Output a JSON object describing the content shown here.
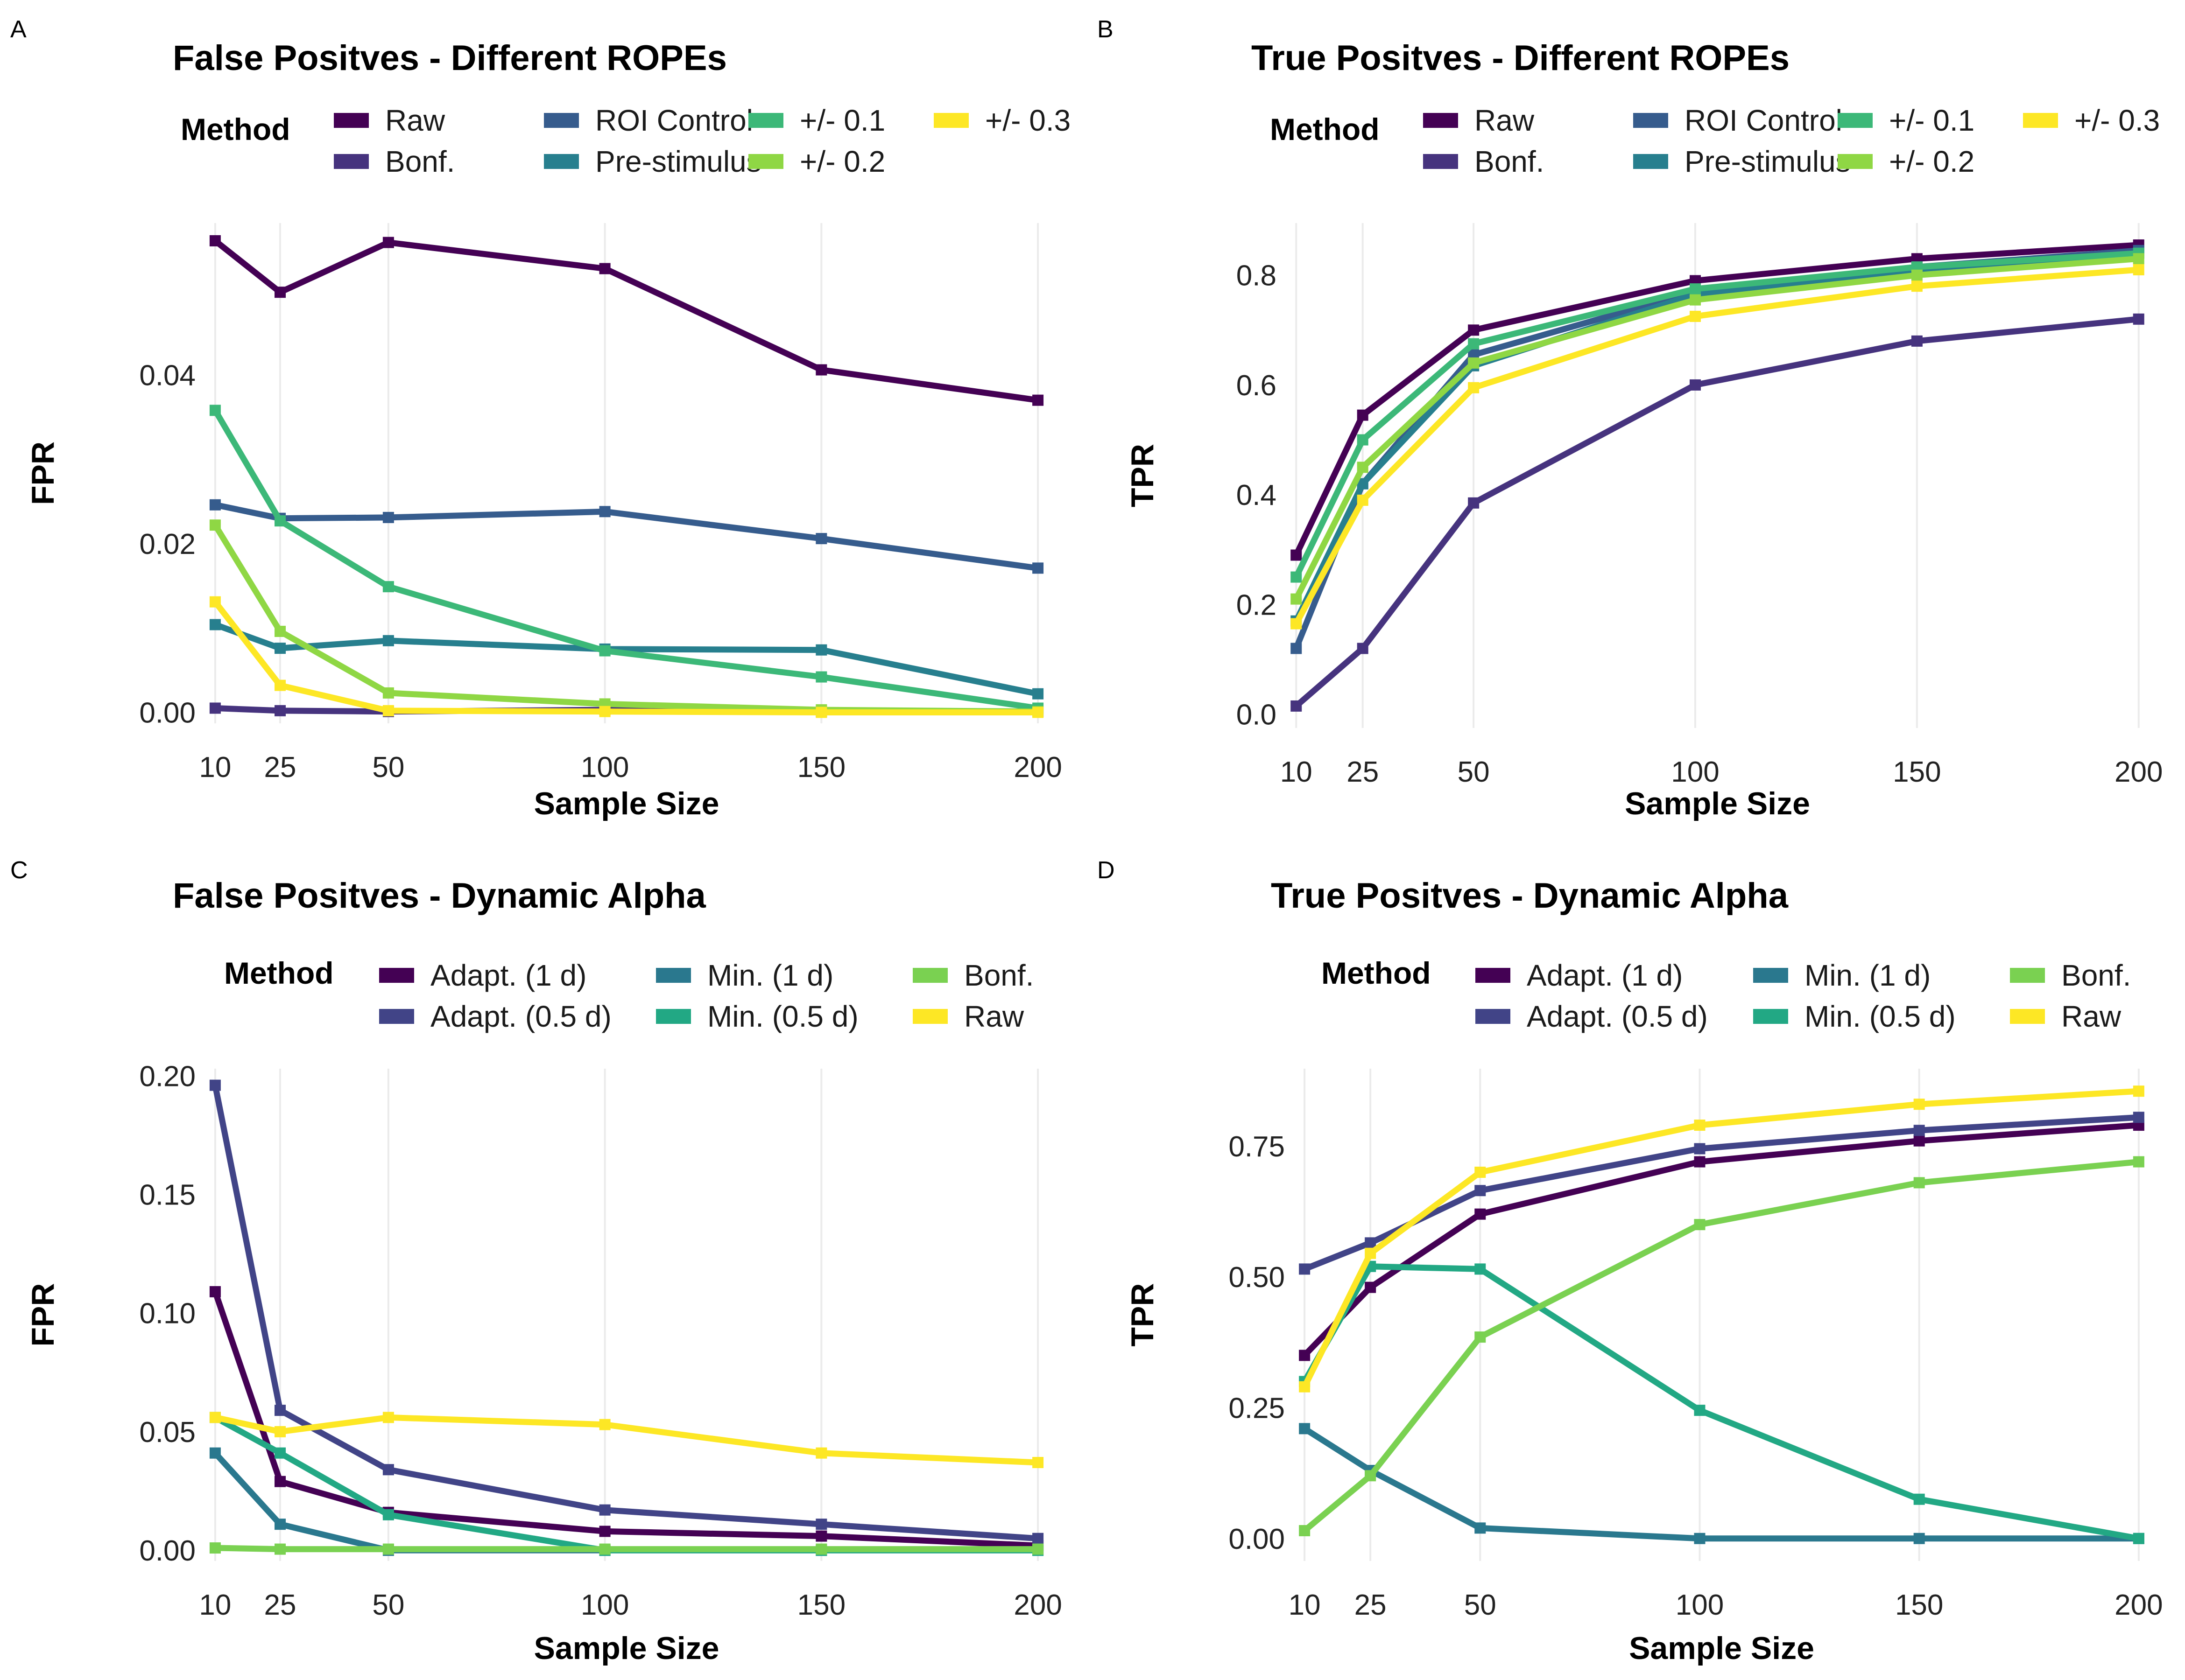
{
  "figure": {
    "panels": [
      {
        "letter": "A",
        "title": "False Positves - Different ROPEs",
        "legend_title": "Method",
        "xlabel": "Sample Size",
        "ylabel": "FPR",
        "legend_rows": 2,
        "legend_cols": [
          [
            [
              "Raw",
              "#440154"
            ],
            [
              "Bonf.",
              "#46337E"
            ]
          ],
          [
            [
              "ROI Control",
              "#365C8D"
            ],
            [
              "Pre-stimulus",
              "#277F8E"
            ]
          ],
          [
            [
              "+/- 0.1",
              "#3CB878"
            ],
            [
              "+/- 0.2",
              "#8FD744"
            ]
          ],
          [
            [
              "+/- 0.3",
              "#FDE725"
            ]
          ]
        ]
      },
      {
        "letter": "B",
        "title": "True Positves - Different ROPEs",
        "legend_title": "Method",
        "xlabel": "Sample Size",
        "ylabel": "TPR",
        "legend_rows": 2,
        "legend_cols": [
          [
            [
              "Raw",
              "#440154"
            ],
            [
              "Bonf.",
              "#46337E"
            ]
          ],
          [
            [
              "ROI Control",
              "#365C8D"
            ],
            [
              "Pre-stimulus",
              "#277F8E"
            ]
          ],
          [
            [
              "+/- 0.1",
              "#3CB878"
            ],
            [
              "+/- 0.2",
              "#8FD744"
            ]
          ],
          [
            [
              "+/- 0.3",
              "#FDE725"
            ]
          ]
        ]
      },
      {
        "letter": "C",
        "title": "False Positves - Dynamic Alpha",
        "legend_title": "Method",
        "xlabel": "Sample Size",
        "ylabel": "FPR",
        "legend_rows": 2,
        "legend_cols": [
          [
            [
              "Adapt. (1 d)",
              "#440154"
            ],
            [
              "Adapt. (0.5 d)",
              "#414487"
            ]
          ],
          [
            [
              "Min. (1 d)",
              "#2A788E"
            ],
            [
              "Min. (0.5 d)",
              "#22A884"
            ]
          ],
          [
            [
              "Bonf.",
              "#7AD151"
            ],
            [
              "Raw",
              "#FDE725"
            ]
          ]
        ]
      },
      {
        "letter": "D",
        "title": "True Positves - Dynamic Alpha",
        "legend_title": "Method",
        "xlabel": "Sample Size",
        "ylabel": "TPR",
        "legend_rows": 2,
        "legend_cols": [
          [
            [
              "Adapt. (1 d)",
              "#440154"
            ],
            [
              "Adapt. (0.5 d)",
              "#414487"
            ]
          ],
          [
            [
              "Min. (1 d)",
              "#2A788E"
            ],
            [
              "Min. (0.5 d)",
              "#22A884"
            ]
          ],
          [
            [
              "Bonf.",
              "#7AD151"
            ],
            [
              "Raw",
              "#FDE725"
            ]
          ]
        ]
      }
    ]
  },
  "chart_data": [
    {
      "type": "line",
      "title": "False Positves - Different ROPEs",
      "xlabel": "Sample Size",
      "ylabel": "FPR",
      "x": [
        10,
        25,
        50,
        100,
        150,
        200
      ],
      "xticks": [
        10,
        25,
        50,
        100,
        150,
        200
      ],
      "xlim": [
        8.5,
        201.5
      ],
      "yticks": [
        0,
        0.02,
        0.04
      ],
      "ytick_labels": [
        "0.00",
        "0.02",
        "0.04"
      ],
      "ylim": [
        -0.0013,
        0.058
      ],
      "grid": "vertical",
      "legend_title": "Method",
      "legend_position": "top",
      "series": [
        {
          "name": "Raw",
          "color": "#440154",
          "values": [
            0.0559,
            0.0498,
            0.0557,
            0.0526,
            0.0406,
            0.037
          ]
        },
        {
          "name": "Bonf.",
          "color": "#46337E",
          "values": [
            0.0005,
            0.0002,
            0.0001,
            0.0003,
            0.0001,
            0.0001
          ]
        },
        {
          "name": "ROI Control",
          "color": "#365C8D",
          "values": [
            0.0246,
            0.023,
            0.0231,
            0.0238,
            0.0206,
            0.0171
          ]
        },
        {
          "name": "Pre-stimulus",
          "color": "#277F8E",
          "values": [
            0.0104,
            0.0076,
            0.0085,
            0.0075,
            0.0074,
            0.0022
          ]
        },
        {
          "name": "+/- 0.1",
          "color": "#3CB878",
          "values": [
            0.0358,
            0.0227,
            0.0149,
            0.0073,
            0.0042,
            0.0005
          ]
        },
        {
          "name": "+/- 0.2",
          "color": "#8FD744",
          "values": [
            0.0222,
            0.0096,
            0.0023,
            0.001,
            0.0003,
            0.0001
          ]
        },
        {
          "name": "+/- 0.3",
          "color": "#FDE725",
          "values": [
            0.0131,
            0.0032,
            0.0002,
            0.0001,
            0.0,
            0.0
          ]
        }
      ]
    },
    {
      "type": "line",
      "title": "True Positves - Different ROPEs",
      "xlabel": "Sample Size",
      "ylabel": "TPR",
      "x": [
        10,
        25,
        50,
        100,
        150,
        200
      ],
      "xticks": [
        10,
        25,
        50,
        100,
        150,
        200
      ],
      "xlim": [
        8.5,
        201.5
      ],
      "yticks": [
        0,
        0.2,
        0.4,
        0.6,
        0.8
      ],
      "ytick_labels": [
        "0.0",
        "0.2",
        "0.4",
        "0.6",
        "0.8"
      ],
      "ylim": [
        -0.025,
        0.895
      ],
      "grid": "vertical",
      "legend_title": "Method",
      "legend_position": "top",
      "series": [
        {
          "name": "Raw",
          "color": "#440154",
          "values": [
            0.29,
            0.545,
            0.7,
            0.79,
            0.83,
            0.855
          ]
        },
        {
          "name": "Bonf.",
          "color": "#46337E",
          "values": [
            0.015,
            0.12,
            0.385,
            0.6,
            0.68,
            0.72
          ]
        },
        {
          "name": "ROI Control",
          "color": "#365C8D",
          "values": [
            0.12,
            0.42,
            0.655,
            0.77,
            0.815,
            0.845
          ]
        },
        {
          "name": "Pre-stimulus",
          "color": "#277F8E",
          "values": [
            0.17,
            0.42,
            0.635,
            0.765,
            0.81,
            0.84
          ]
        },
        {
          "name": "+/- 0.1",
          "color": "#3CB878",
          "values": [
            0.25,
            0.5,
            0.675,
            0.775,
            0.815,
            0.84
          ]
        },
        {
          "name": "+/- 0.2",
          "color": "#8FD744",
          "values": [
            0.21,
            0.45,
            0.64,
            0.755,
            0.8,
            0.83
          ]
        },
        {
          "name": "+/- 0.3",
          "color": "#FDE725",
          "values": [
            0.165,
            0.39,
            0.595,
            0.725,
            0.78,
            0.81
          ]
        }
      ]
    },
    {
      "type": "line",
      "title": "False Positves - Dynamic Alpha",
      "xlabel": "Sample Size",
      "ylabel": "FPR",
      "x": [
        10,
        25,
        50,
        100,
        150,
        200
      ],
      "xticks": [
        10,
        25,
        50,
        100,
        150,
        200
      ],
      "xlim": [
        8.5,
        201.5
      ],
      "yticks": [
        0,
        0.05,
        0.1,
        0.15,
        0.2
      ],
      "ytick_labels": [
        "0.00",
        "0.05",
        "0.10",
        "0.15",
        "0.20"
      ],
      "ylim": [
        -0.0045,
        0.203
      ],
      "grid": "vertical",
      "legend_title": "Method",
      "legend_position": "top",
      "series": [
        {
          "name": "Adapt. (1 d)",
          "color": "#440154",
          "values": [
            0.109,
            0.029,
            0.016,
            0.008,
            0.006,
            0.002
          ]
        },
        {
          "name": "Adapt. (0.5 d)",
          "color": "#414487",
          "values": [
            0.196,
            0.059,
            0.034,
            0.017,
            0.011,
            0.005
          ]
        },
        {
          "name": "Min. (1 d)",
          "color": "#2A788E",
          "values": [
            0.041,
            0.011,
            0.0,
            0.0,
            0.0,
            0.0
          ]
        },
        {
          "name": "Min. (0.5 d)",
          "color": "#22A884",
          "values": [
            0.056,
            0.041,
            0.015,
            0.0,
            0.0,
            0.0
          ]
        },
        {
          "name": "Bonf.",
          "color": "#7AD151",
          "values": [
            0.001,
            0.0005,
            0.0005,
            0.0005,
            0.0005,
            0.0005
          ]
        },
        {
          "name": "Raw",
          "color": "#FDE725",
          "values": [
            0.056,
            0.05,
            0.056,
            0.053,
            0.041,
            0.037
          ]
        }
      ]
    },
    {
      "type": "line",
      "title": "True Positves - Dynamic Alpha",
      "xlabel": "Sample Size",
      "ylabel": "TPR",
      "x": [
        10,
        25,
        50,
        100,
        150,
        200
      ],
      "xticks": [
        10,
        25,
        50,
        100,
        150,
        200
      ],
      "xlim": [
        8.5,
        201.5
      ],
      "yticks": [
        0,
        0.25,
        0.5,
        0.75
      ],
      "ytick_labels": [
        "0.00",
        "0.25",
        "0.50",
        "0.75"
      ],
      "ylim": [
        -0.043,
        0.898
      ],
      "grid": "vertical",
      "legend_title": "Method",
      "legend_position": "top",
      "series": [
        {
          "name": "Adapt. (1 d)",
          "color": "#440154",
          "values": [
            0.35,
            0.48,
            0.62,
            0.72,
            0.76,
            0.79
          ]
        },
        {
          "name": "Adapt. (0.5 d)",
          "color": "#414487",
          "values": [
            0.515,
            0.565,
            0.665,
            0.745,
            0.78,
            0.805
          ]
        },
        {
          "name": "Min. (1 d)",
          "color": "#2A788E",
          "values": [
            0.21,
            0.13,
            0.02,
            0.0,
            0.0,
            0.0
          ]
        },
        {
          "name": "Min. (0.5 d)",
          "color": "#22A884",
          "values": [
            0.3,
            0.52,
            0.515,
            0.245,
            0.075,
            0.0
          ]
        },
        {
          "name": "Bonf.",
          "color": "#7AD151",
          "values": [
            0.015,
            0.12,
            0.385,
            0.6,
            0.68,
            0.72
          ]
        },
        {
          "name": "Raw",
          "color": "#FDE725",
          "values": [
            0.29,
            0.545,
            0.7,
            0.79,
            0.83,
            0.855
          ]
        }
      ]
    }
  ]
}
